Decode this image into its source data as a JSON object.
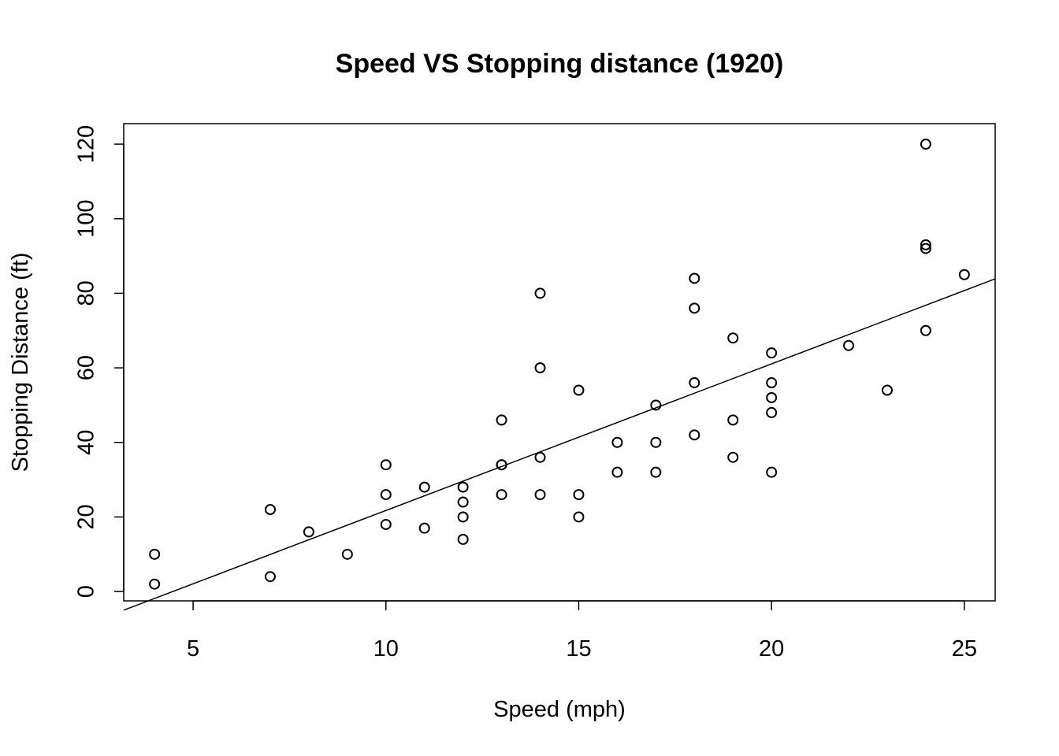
{
  "chart_data": {
    "type": "scatter",
    "title": "Speed VS Stopping distance (1920)",
    "xlabel": "Speed (mph)",
    "ylabel": "Stopping Distance (ft)",
    "xlim": [
      3.2,
      25.8
    ],
    "ylim": [
      -2.5,
      125.5
    ],
    "x_ticks": [
      5,
      10,
      15,
      20,
      25
    ],
    "y_ticks": [
      0,
      20,
      40,
      60,
      80,
      100,
      120
    ],
    "grid": false,
    "legend": "none",
    "points": {
      "x": [
        4,
        4,
        7,
        7,
        8,
        9,
        10,
        10,
        10,
        11,
        11,
        12,
        12,
        12,
        12,
        13,
        13,
        13,
        13,
        14,
        14,
        14,
        14,
        15,
        15,
        15,
        16,
        16,
        17,
        17,
        17,
        18,
        18,
        18,
        18,
        19,
        19,
        19,
        20,
        20,
        20,
        20,
        20,
        22,
        23,
        24,
        24,
        24,
        24,
        25
      ],
      "y": [
        2,
        10,
        4,
        22,
        16,
        10,
        18,
        26,
        34,
        17,
        28,
        14,
        20,
        24,
        28,
        26,
        34,
        34,
        46,
        26,
        36,
        60,
        80,
        20,
        26,
        54,
        32,
        40,
        32,
        40,
        50,
        42,
        56,
        76,
        84,
        36,
        46,
        68,
        32,
        48,
        52,
        56,
        64,
        66,
        54,
        70,
        92,
        93,
        120,
        85
      ]
    },
    "fit_line": {
      "intercept": -17.579,
      "slope": 3.932
    }
  }
}
